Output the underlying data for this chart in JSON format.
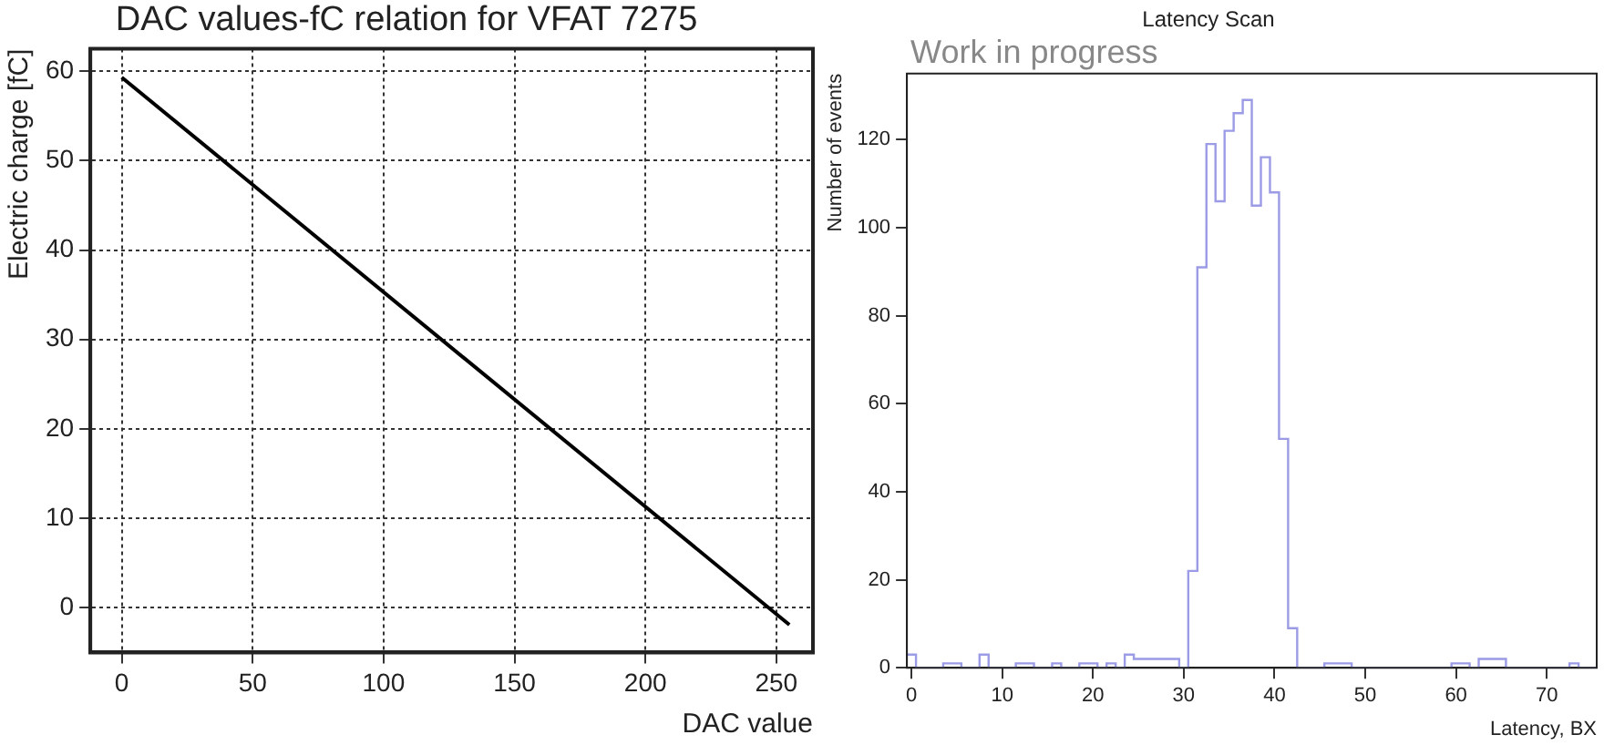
{
  "chart_data": [
    {
      "type": "line",
      "title": "DAC values-fC relation for VFAT 7275",
      "xlabel": "DAC value",
      "ylabel": "Electric charge [fC]",
      "x": [
        0,
        255
      ],
      "series": [
        {
          "color": "#000000",
          "values": [
            59.3,
            -1.9
          ]
        }
      ],
      "xlim": [
        -12,
        264
      ],
      "ylim": [
        -5,
        62.5
      ],
      "xticks": [
        0,
        50,
        100,
        150,
        200,
        250
      ],
      "yticks": [
        0,
        10,
        20,
        30,
        40,
        50,
        60
      ],
      "grid": true,
      "legend": false,
      "marker": "none",
      "line_style": "solid"
    },
    {
      "type": "histogram",
      "title": "Latency Scan",
      "xlabel": "Latency, BX",
      "ylabel": "Number of events",
      "annotations": [
        "Work in progress"
      ],
      "color": "#9b9be6",
      "bins": [
        -0.5,
        0.5,
        1.5,
        2.5,
        3.5,
        4.5,
        5.5,
        6.5,
        7.5,
        8.5,
        9.5,
        10.5,
        11.5,
        12.5,
        13.5,
        14.5,
        15.5,
        16.5,
        17.5,
        18.5,
        19.5,
        20.5,
        21.5,
        22.5,
        23.5,
        24.5,
        25.5,
        26.5,
        27.5,
        28.5,
        29.5,
        30.5,
        31.5,
        32.5,
        33.5,
        34.5,
        35.5,
        36.5,
        37.5,
        38.5,
        39.5,
        40.5,
        41.5,
        42.5,
        43.5,
        44.5,
        45.5,
        46.5,
        47.5,
        48.5,
        49.5,
        50.5,
        51.5,
        52.5,
        53.5,
        54.5,
        55.5,
        56.5,
        57.5,
        58.5,
        59.5,
        60.5,
        61.5,
        62.5,
        63.5,
        64.5,
        65.5,
        66.5,
        67.5,
        68.5,
        69.5,
        70.5,
        71.5,
        72.5,
        73.5,
        74.5,
        75.5
      ],
      "values": [
        3,
        0,
        0,
        0,
        1,
        1,
        0,
        0,
        3,
        0,
        0,
        0,
        1,
        1,
        0,
        0,
        1,
        0,
        0,
        1,
        1,
        0,
        1,
        0,
        3,
        2,
        2,
        2,
        2,
        2,
        0,
        22,
        91,
        119,
        106,
        122,
        126,
        129,
        105,
        116,
        108,
        52,
        9,
        0,
        0,
        0,
        1,
        1,
        1,
        0,
        0,
        0,
        0,
        0,
        0,
        0,
        0,
        0,
        0,
        0,
        1,
        1,
        0,
        2,
        2,
        2,
        0,
        0,
        0,
        0,
        0,
        0,
        0,
        1,
        0,
        0
      ],
      "xlim": [
        -0.5,
        75.5
      ],
      "ylim": [
        0,
        135
      ],
      "xticks": [
        0,
        10,
        20,
        30,
        40,
        50,
        60,
        70
      ],
      "yticks": [
        0,
        20,
        40,
        60,
        80,
        100,
        120
      ],
      "grid": false,
      "legend": false
    }
  ]
}
